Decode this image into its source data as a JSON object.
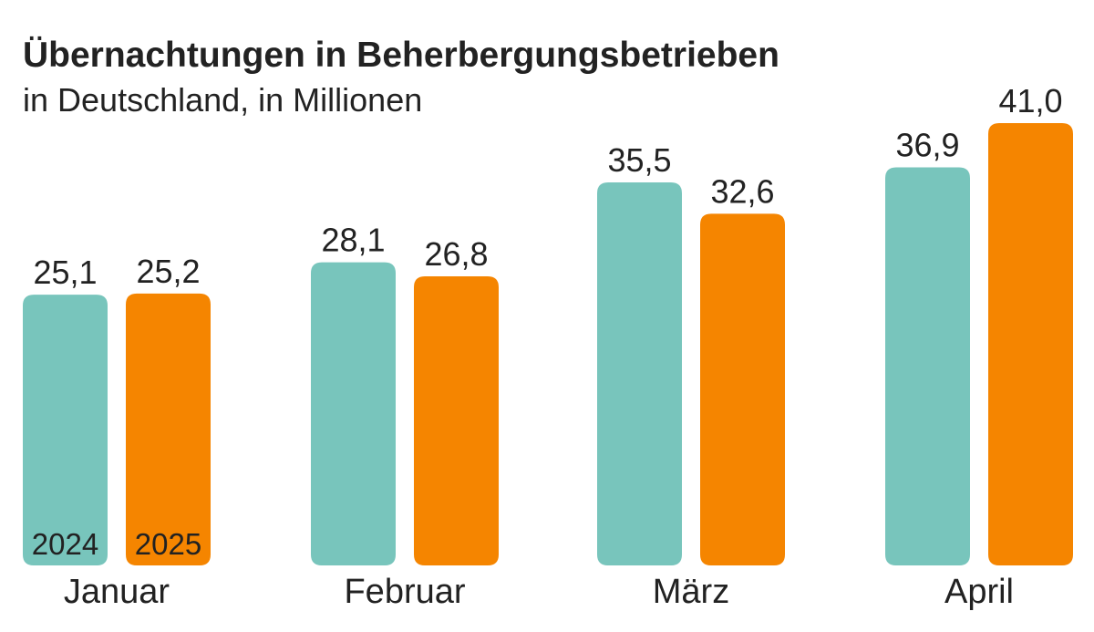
{
  "chart_data": {
    "type": "bar",
    "title": "Übernachtungen in Beherbergungsbetrieben",
    "subtitle": "in Deutschland, in Millionen",
    "categories": [
      "Januar",
      "Februar",
      "März",
      "April"
    ],
    "series": [
      {
        "name": "2024",
        "color": "#78C5BC",
        "values": [
          25.1,
          28.1,
          35.5,
          36.9
        ],
        "labels": [
          "25,1",
          "28,1",
          "35,5",
          "36,9"
        ]
      },
      {
        "name": "2025",
        "color": "#F58500",
        "values": [
          25.2,
          26.8,
          32.6,
          41.0
        ],
        "labels": [
          "25,2",
          "26,8",
          "32,6",
          "41,0"
        ]
      }
    ],
    "ylim": [
      0,
      41
    ],
    "grid": false,
    "legend": "inside first group bars"
  }
}
